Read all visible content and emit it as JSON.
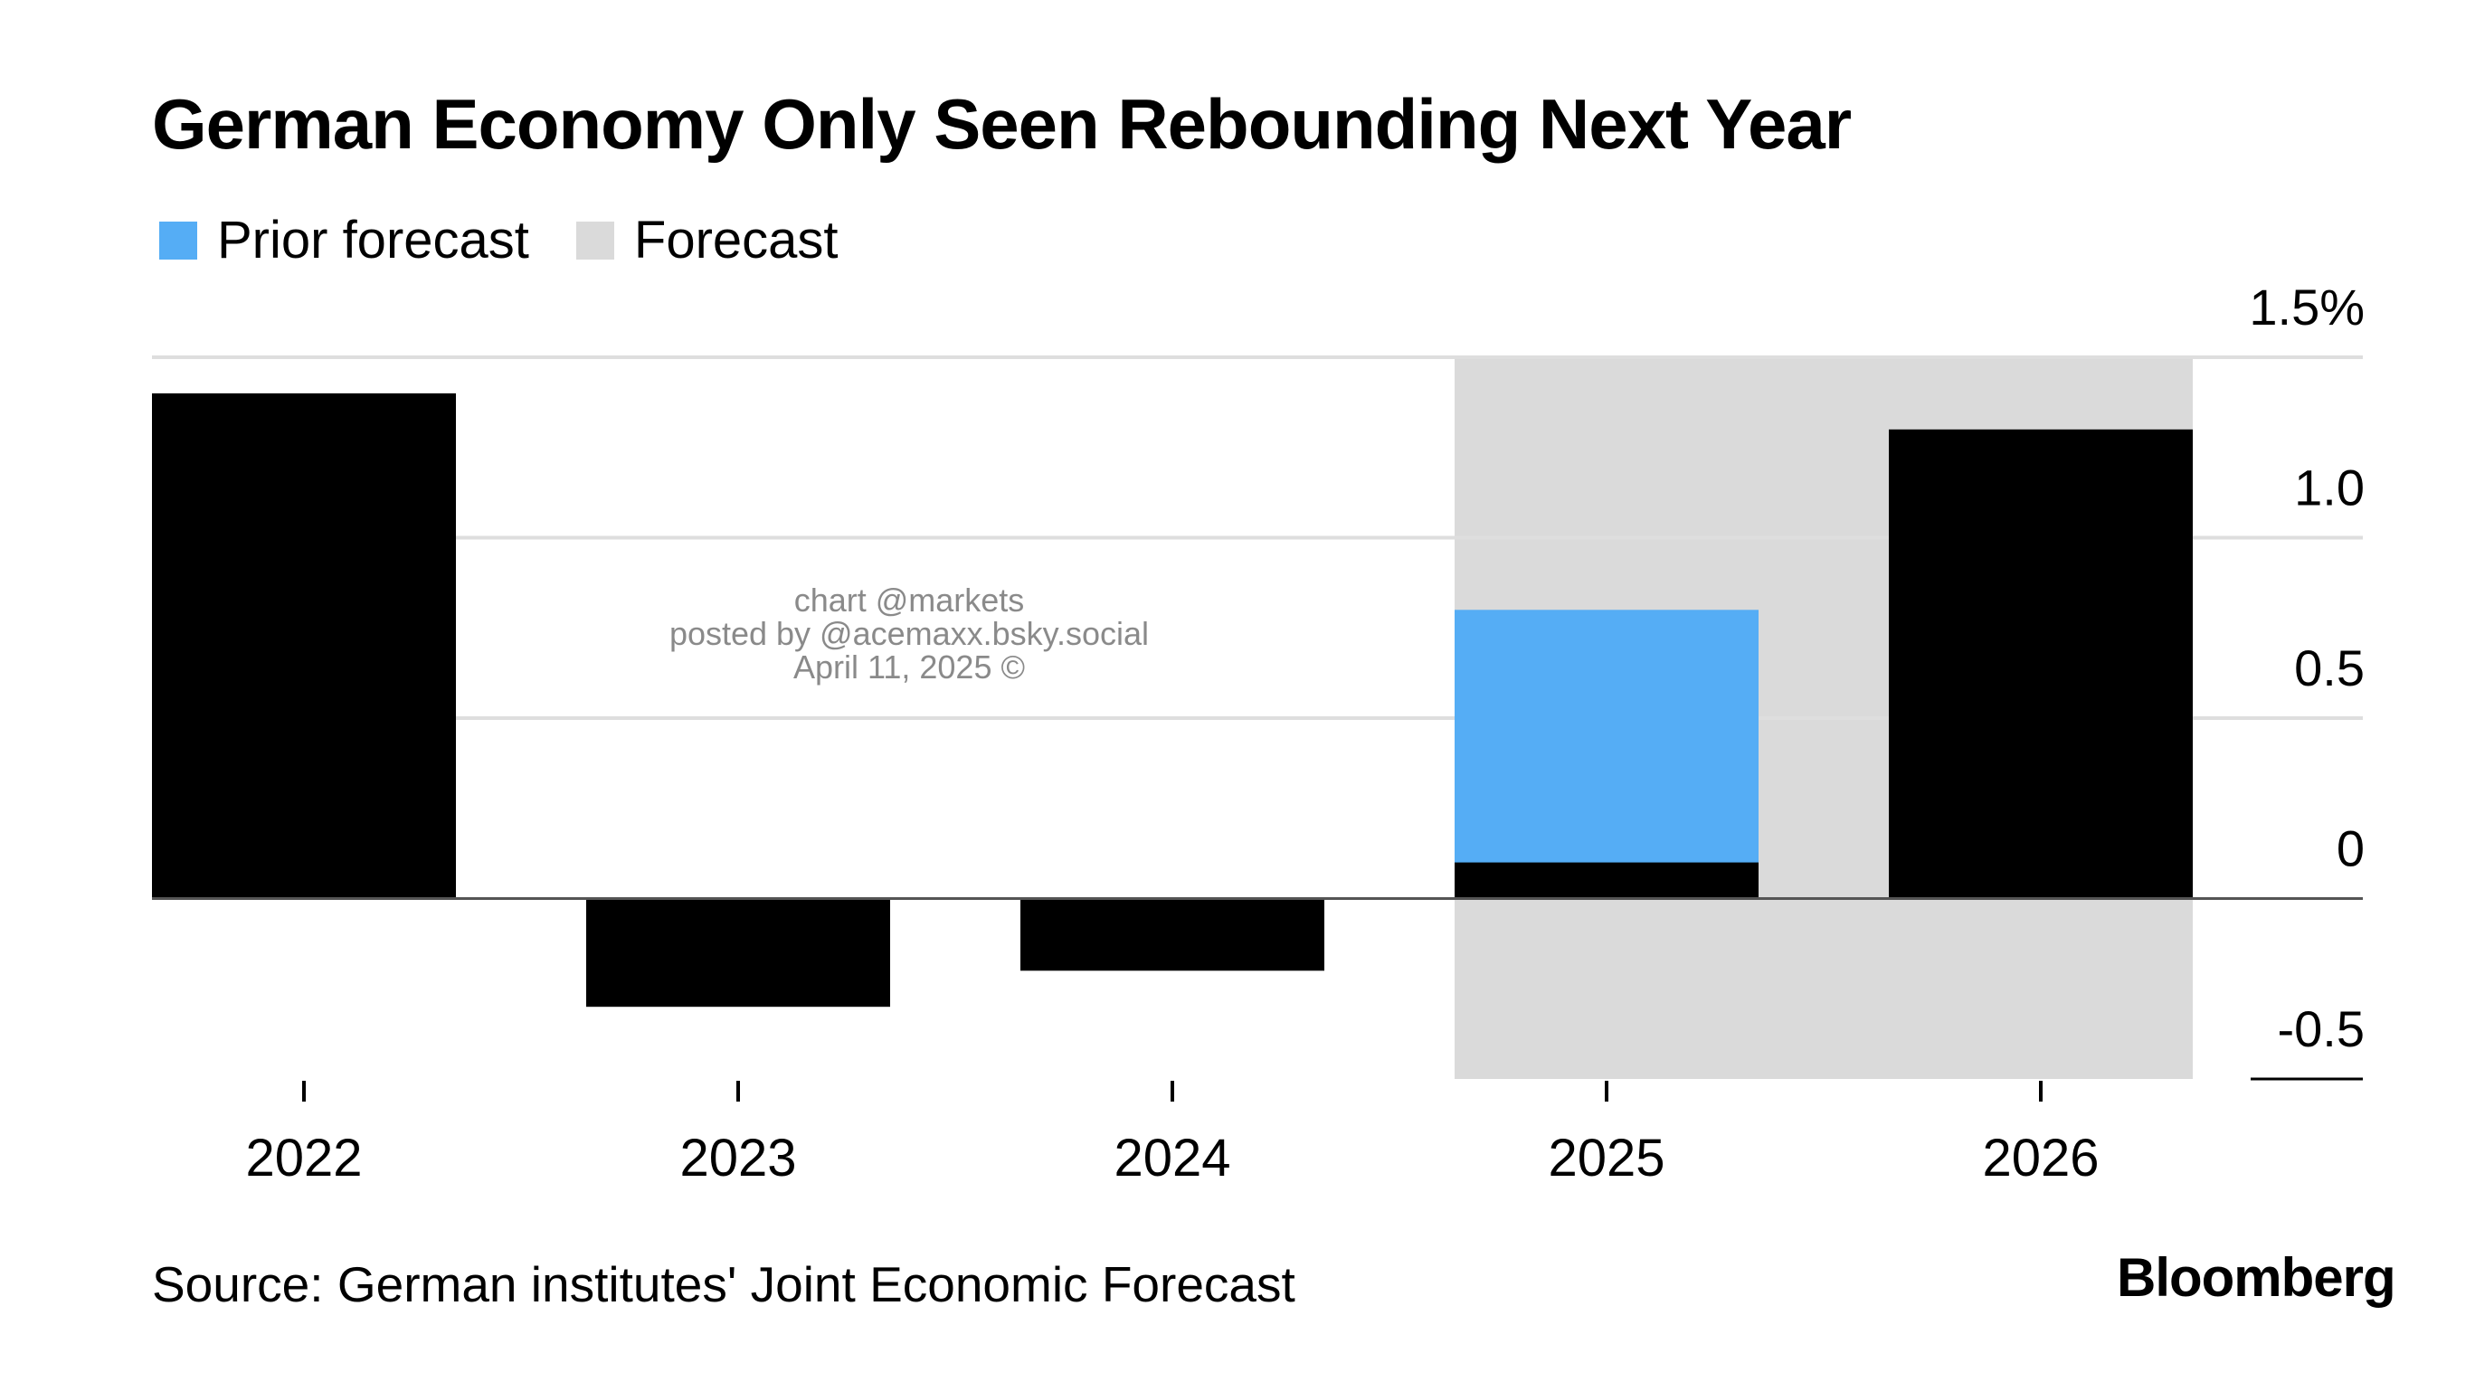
{
  "chart_data": {
    "type": "bar",
    "title": "German Economy Only Seen Rebounding Next Year",
    "categories": [
      "2022",
      "2023",
      "2024",
      "2025",
      "2026"
    ],
    "series": [
      {
        "name": "Prior forecast",
        "values": [
          null,
          null,
          null,
          0.8,
          null
        ]
      },
      {
        "name": "",
        "values": [
          1.4,
          -0.3,
          -0.2,
          0.1,
          1.3
        ]
      }
    ],
    "forecast_band": {
      "label": "Forecast",
      "categories": [
        "2025",
        "2026"
      ]
    },
    "y_ticks": [
      {
        "value": 1.5,
        "label": "1.5%"
      },
      {
        "value": 1.0,
        "label": "1.0"
      },
      {
        "value": 0.5,
        "label": "0.5"
      },
      {
        "value": 0,
        "label": "0"
      },
      {
        "value": -0.5,
        "label": "-0.5"
      }
    ],
    "ylim": [
      -0.5,
      1.5
    ],
    "grid": true,
    "legend_position": "top-left",
    "y_axis_position": "right",
    "xlabel": "",
    "ylabel": ""
  },
  "legend": {
    "prior_label": "Prior forecast",
    "forecast_label": "Forecast"
  },
  "colors": {
    "bar": "#000000",
    "prior_forecast": "#55adf5",
    "forecast_band": "#dadada",
    "grid": "#dedede"
  },
  "source": "Source: German institutes' Joint Economic Forecast",
  "brand": "Bloomberg",
  "watermark": {
    "line1": "chart @markets",
    "line2": "posted by @acemaxx.bsky.social",
    "line3": "April 11, 2025 ©"
  }
}
